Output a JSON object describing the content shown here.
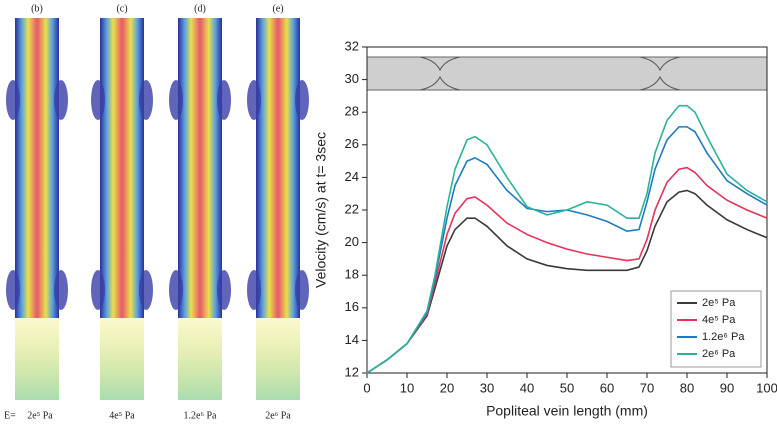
{
  "figure_panels": {
    "prefix": "E=",
    "panels": [
      {
        "label": "(b)",
        "caption": "2e⁵ Pa"
      },
      {
        "label": "(c)",
        "caption": "4e⁵ Pa"
      },
      {
        "label": "(d)",
        "caption": "1.2e⁶ Pa"
      },
      {
        "label": "(e)",
        "caption": "2e⁶ Pa"
      }
    ]
  },
  "chart_data": {
    "type": "line",
    "x_label": "Popliteal vein length (mm)",
    "y_label": "Velocity (cm/s) at t= 3sec",
    "x": [
      0,
      5,
      10,
      15,
      17,
      20,
      22,
      25,
      27,
      30,
      35,
      40,
      45,
      50,
      55,
      60,
      65,
      68,
      70,
      72,
      75,
      78,
      80,
      82,
      85,
      90,
      95,
      100
    ],
    "series": [
      {
        "name": "2e⁵ Pa",
        "color": "#3a3a3a",
        "values": [
          12,
          12.8,
          13.8,
          15.5,
          17.2,
          19.8,
          20.8,
          21.5,
          21.5,
          21.0,
          19.8,
          19.0,
          18.6,
          18.4,
          18.3,
          18.3,
          18.3,
          18.5,
          19.5,
          21.0,
          22.5,
          23.1,
          23.2,
          23.0,
          22.3,
          21.4,
          20.8,
          20.3
        ]
      },
      {
        "name": "4e⁵ Pa",
        "color": "#e8315a",
        "values": [
          12,
          12.8,
          13.8,
          15.6,
          17.5,
          20.5,
          21.8,
          22.7,
          22.8,
          22.3,
          21.2,
          20.5,
          20.0,
          19.6,
          19.3,
          19.1,
          18.9,
          19.0,
          20.2,
          22.0,
          23.7,
          24.5,
          24.6,
          24.3,
          23.5,
          22.6,
          22.0,
          21.5
        ]
      },
      {
        "name": "1.2e⁶ Pa",
        "color": "#1f7bbf",
        "values": [
          12,
          12.8,
          13.8,
          15.7,
          17.8,
          21.5,
          23.5,
          25.0,
          25.2,
          24.8,
          23.2,
          22.1,
          21.9,
          22.0,
          21.7,
          21.3,
          20.7,
          20.8,
          22.5,
          24.5,
          26.3,
          27.1,
          27.1,
          26.8,
          25.5,
          23.8,
          23.0,
          22.3
        ]
      },
      {
        "name": "2e⁶ Pa",
        "color": "#2bb39a",
        "values": [
          12,
          12.8,
          13.8,
          15.8,
          18.0,
          22.2,
          24.5,
          26.3,
          26.5,
          26.0,
          24.0,
          22.2,
          21.7,
          22.0,
          22.5,
          22.3,
          21.5,
          21.5,
          23.0,
          25.5,
          27.5,
          28.4,
          28.4,
          28.0,
          26.5,
          24.2,
          23.2,
          22.5
        ]
      }
    ],
    "xlim": [
      0,
      100
    ],
    "xticks": [
      0,
      10,
      20,
      30,
      40,
      50,
      60,
      70,
      80,
      90,
      100
    ],
    "ylim": [
      12,
      32
    ],
    "yticks": [
      12,
      14,
      16,
      18,
      20,
      22,
      24,
      26,
      28,
      30,
      32
    ],
    "legend": "lower right"
  }
}
